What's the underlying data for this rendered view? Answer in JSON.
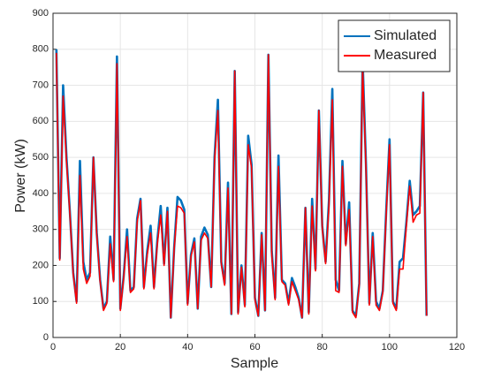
{
  "chart_data": {
    "type": "line",
    "xlabel": "Sample",
    "ylabel": "Power (kW)",
    "x": [
      1,
      2,
      3,
      4,
      5,
      6,
      7,
      8,
      9,
      10,
      11,
      12,
      13,
      14,
      15,
      16,
      17,
      18,
      19,
      20,
      21,
      22,
      23,
      24,
      25,
      26,
      27,
      28,
      29,
      30,
      31,
      32,
      33,
      34,
      35,
      36,
      37,
      38,
      39,
      40,
      41,
      42,
      43,
      44,
      45,
      46,
      47,
      48,
      49,
      50,
      51,
      52,
      53,
      54,
      55,
      56,
      57,
      58,
      59,
      60,
      61,
      62,
      63,
      64,
      65,
      66,
      67,
      68,
      69,
      70,
      71,
      72,
      73,
      74,
      75,
      76,
      77,
      78,
      79,
      80,
      81,
      82,
      83,
      84,
      85,
      86,
      87,
      88,
      89,
      90,
      91,
      92,
      93,
      94,
      95,
      96,
      97,
      98,
      99,
      100,
      101,
      102,
      103,
      104,
      105,
      106,
      107,
      108,
      109,
      110,
      111
    ],
    "series": [
      {
        "name": "Simulated",
        "color": "#0072bd",
        "values": [
          800,
          220,
          700,
          500,
          350,
          180,
          100,
          490,
          210,
          160,
          180,
          500,
          290,
          160,
          80,
          100,
          280,
          160,
          780,
          80,
          170,
          300,
          130,
          140,
          330,
          385,
          140,
          240,
          310,
          140,
          270,
          365,
          205,
          360,
          55,
          250,
          390,
          380,
          355,
          95,
          230,
          275,
          80,
          280,
          305,
          285,
          140,
          500,
          660,
          210,
          150,
          430,
          65,
          740,
          70,
          200,
          90,
          560,
          480,
          110,
          60,
          290,
          75,
          785,
          240,
          110,
          505,
          160,
          150,
          95,
          165,
          140,
          110,
          55,
          360,
          70,
          385,
          190,
          630,
          310,
          210,
          380,
          690,
          160,
          130,
          490,
          260,
          375,
          75,
          60,
          150,
          770,
          480,
          95,
          290,
          100,
          80,
          130,
          350,
          550,
          100,
          80,
          210,
          220,
          320,
          435,
          340,
          350,
          365,
          680,
          60
        ]
      },
      {
        "name": "Measured",
        "color": "#ff0000",
        "values": [
          790,
          215,
          670,
          490,
          345,
          175,
          95,
          450,
          190,
          150,
          170,
          500,
          285,
          155,
          75,
          95,
          260,
          155,
          760,
          75,
          165,
          280,
          125,
          135,
          320,
          380,
          135,
          230,
          290,
          135,
          260,
          340,
          200,
          350,
          55,
          245,
          365,
          360,
          345,
          90,
          225,
          265,
          80,
          270,
          290,
          275,
          140,
          490,
          630,
          205,
          145,
          415,
          65,
          740,
          65,
          195,
          85,
          535,
          470,
          105,
          60,
          285,
          75,
          785,
          230,
          105,
          475,
          155,
          145,
          90,
          155,
          130,
          105,
          55,
          360,
          65,
          365,
          185,
          630,
          305,
          205,
          365,
          660,
          130,
          125,
          475,
          255,
          355,
          70,
          55,
          145,
          750,
          470,
          90,
          280,
          90,
          75,
          125,
          340,
          535,
          95,
          75,
          190,
          190,
          310,
          420,
          320,
          340,
          345,
          680,
          60
        ]
      }
    ],
    "xlim": [
      0,
      120
    ],
    "xticks": [
      0,
      20,
      40,
      60,
      80,
      100,
      120
    ],
    "ylim": [
      0,
      900
    ],
    "yticks": [
      0,
      100,
      200,
      300,
      400,
      500,
      600,
      700,
      800,
      900
    ],
    "grid": true,
    "legend": "northeast"
  }
}
